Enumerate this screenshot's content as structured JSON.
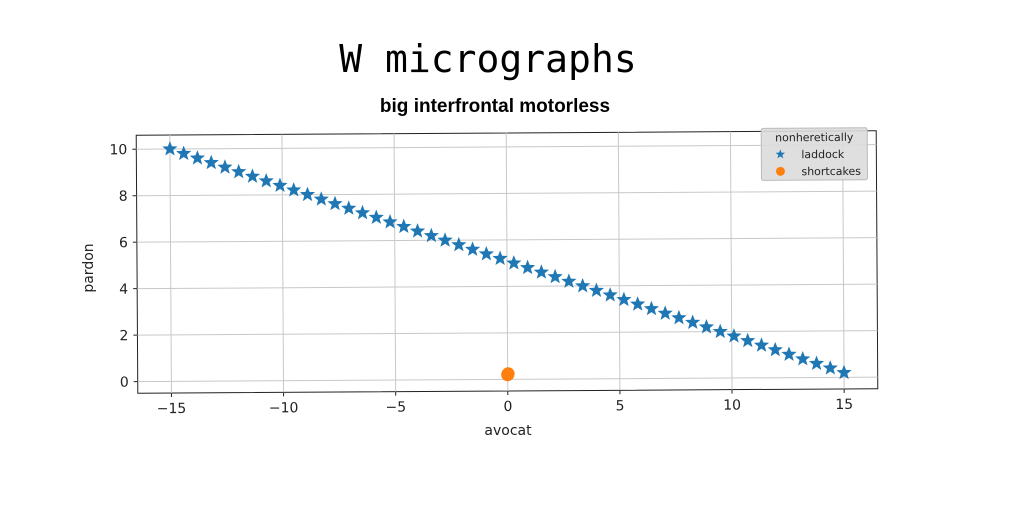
{
  "chart_data": {
    "type": "scatter",
    "title": "W micrographs",
    "subtitle": "big interfrontal motorless",
    "xlabel": "avocat",
    "ylabel": "pardon",
    "xlim": [
      -16.5,
      16.5
    ],
    "ylim": [
      -0.5,
      10.6
    ],
    "xticks": [
      -15,
      -10,
      -5,
      0,
      5,
      10,
      15
    ],
    "yticks": [
      0,
      2,
      4,
      6,
      8,
      10
    ],
    "grid": true,
    "legend": {
      "title": "nonheretically",
      "position": "top-right"
    },
    "series": [
      {
        "name": "laddock",
        "marker": "star",
        "color": "#1f77b4",
        "x": [
          -15.0,
          -14.388,
          -13.776,
          -13.163,
          -12.551,
          -11.939,
          -11.327,
          -10.714,
          -10.102,
          -9.49,
          -8.878,
          -8.265,
          -7.653,
          -7.041,
          -6.429,
          -5.816,
          -5.204,
          -4.592,
          -3.98,
          -3.367,
          -2.755,
          -2.143,
          -1.531,
          -0.918,
          -0.306,
          0.306,
          0.918,
          1.531,
          2.143,
          2.755,
          3.367,
          3.98,
          4.592,
          5.204,
          5.816,
          6.429,
          7.041,
          7.653,
          8.265,
          8.878,
          9.49,
          10.102,
          10.714,
          11.327,
          11.939,
          12.551,
          13.163,
          13.776,
          14.388,
          15.0
        ],
        "y": [
          10.0,
          9.8,
          9.6,
          9.4,
          9.2,
          9.0,
          8.8,
          8.6,
          8.4,
          8.2,
          8.0,
          7.8,
          7.6,
          7.4,
          7.2,
          7.0,
          6.8,
          6.6,
          6.4,
          6.2,
          6.0,
          5.8,
          5.6,
          5.4,
          5.2,
          5.0,
          4.8,
          4.6,
          4.4,
          4.2,
          4.0,
          3.8,
          3.6,
          3.4,
          3.2,
          3.0,
          2.8,
          2.6,
          2.4,
          2.2,
          2.0,
          1.8,
          1.6,
          1.4,
          1.2,
          1.0,
          0.8,
          0.6,
          0.4,
          0.2
        ]
      },
      {
        "name": "shortcakes",
        "marker": "circle",
        "color": "#ff7f0e",
        "x": [
          0.0,
          0.02
        ],
        "y": [
          0.2,
          0.24
        ]
      }
    ]
  }
}
